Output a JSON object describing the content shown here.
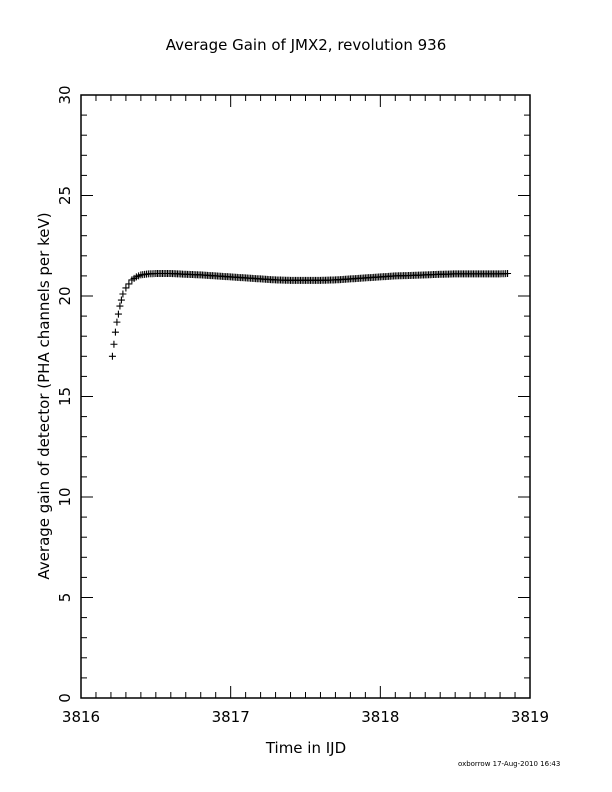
{
  "chart_data": {
    "type": "scatter",
    "title": "Average Gain of JMX2, revolution 936",
    "xlabel": "Time in IJD",
    "ylabel": "Average gain of detector (PHA channels per keV)",
    "xlim": [
      3816,
      3819
    ],
    "ylim": [
      0,
      30
    ],
    "x_ticks": [
      "3816",
      "3817",
      "3818",
      "3819"
    ],
    "y_ticks": [
      "0",
      "5",
      "10",
      "15",
      "20",
      "25",
      "30"
    ],
    "marker": "plus",
    "grid": false,
    "series": [
      {
        "x": [
          3816.21,
          3816.22,
          3816.23,
          3816.24,
          3816.25,
          3816.26,
          3816.27,
          3816.28,
          3816.3,
          3816.32,
          3816.34,
          3816.37,
          3816.4,
          3816.45,
          3816.5,
          3816.6,
          3816.7,
          3816.8,
          3816.9,
          3817.0,
          3817.1,
          3817.2,
          3817.3,
          3817.4,
          3817.5,
          3817.6,
          3817.7,
          3817.8,
          3817.9,
          3818.0,
          3818.1,
          3818.2,
          3818.3,
          3818.4,
          3818.5,
          3818.6,
          3818.7,
          3818.8,
          3818.85
        ],
        "y": [
          17.0,
          17.6,
          18.2,
          18.7,
          19.1,
          19.5,
          19.8,
          20.1,
          20.4,
          20.6,
          20.8,
          20.95,
          21.05,
          21.1,
          21.12,
          21.12,
          21.08,
          21.05,
          21.0,
          20.95,
          20.9,
          20.85,
          20.8,
          20.78,
          20.78,
          20.78,
          20.8,
          20.85,
          20.9,
          20.95,
          21.0,
          21.02,
          21.05,
          21.08,
          21.1,
          21.1,
          21.1,
          21.1,
          21.12
        ]
      }
    ]
  },
  "footer": {
    "stamp": "oxborrow 17-Aug-2010 16:43"
  }
}
